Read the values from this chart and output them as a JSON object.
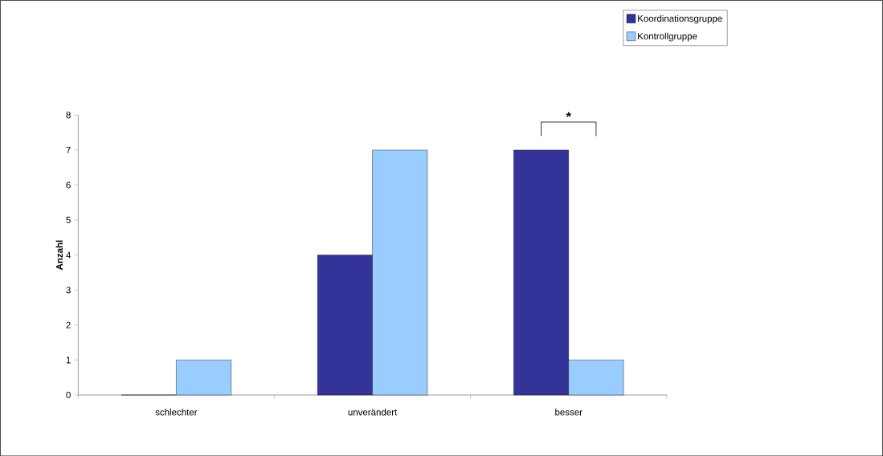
{
  "chart_data": {
    "type": "bar",
    "ylabel": "Anzahl",
    "categories": [
      "schlechter",
      "unverändert",
      "besser"
    ],
    "series": [
      {
        "name": "Koordinationsgruppe",
        "color": "#333399",
        "values": [
          0,
          4,
          7
        ]
      },
      {
        "name": "Kontrollgruppe",
        "color": "#99ccff",
        "values": [
          1,
          7,
          1
        ]
      }
    ],
    "ylim": [
      0,
      8
    ],
    "yticks": [
      0,
      1,
      2,
      3,
      4,
      5,
      6,
      7,
      8
    ],
    "grid": false,
    "legend": "top right",
    "annotations": [
      "*"
    ]
  }
}
